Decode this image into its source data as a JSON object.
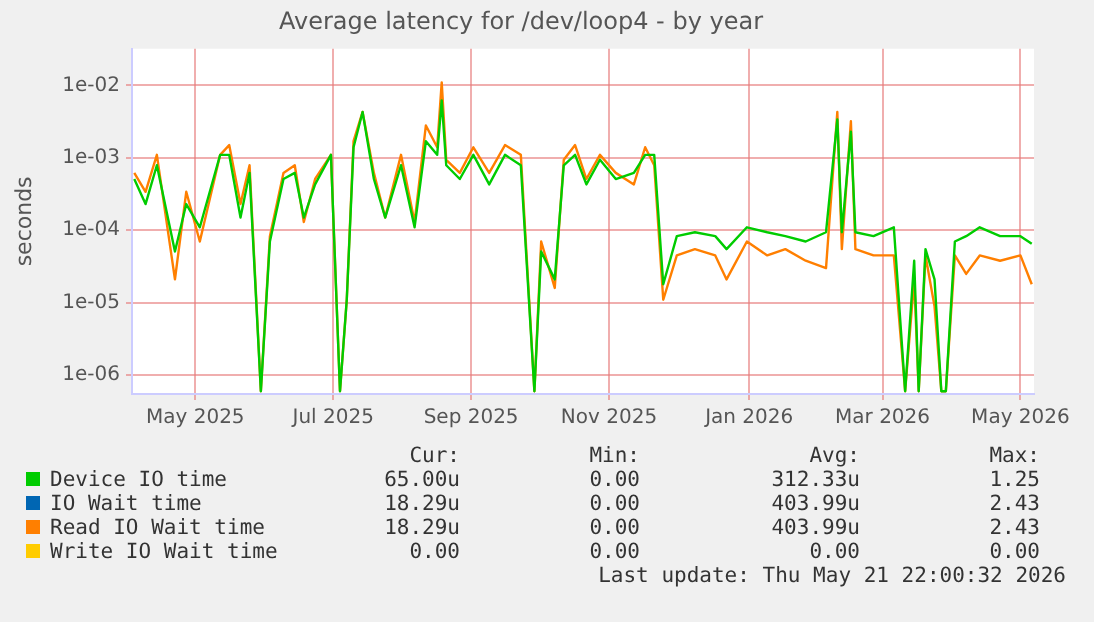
{
  "chart_data": {
    "type": "line",
    "title": "Average latency for /dev/loop4 - by year",
    "ylabel": "seconds",
    "log": "y",
    "grid": true,
    "legend": "bottom",
    "marker": "none",
    "line_style": "solid",
    "x": [
      "2025-04-19",
      "2025-04-24",
      "2025-04-29",
      "2025-05-07",
      "2025-05-12",
      "2025-05-18",
      "2025-05-27",
      "2025-05-31",
      "2025-06-05",
      "2025-06-09",
      "2025-06-14",
      "2025-06-18",
      "2025-06-24",
      "2025-06-29",
      "2025-07-03",
      "2025-07-08",
      "2025-07-15",
      "2025-07-19",
      "2025-07-22",
      "2025-07-25",
      "2025-07-29",
      "2025-08-03",
      "2025-08-08",
      "2025-08-15",
      "2025-08-21",
      "2025-08-26",
      "2025-08-31",
      "2025-09-02",
      "2025-09-04",
      "2025-09-10",
      "2025-09-16",
      "2025-09-23",
      "2025-09-30",
      "2025-10-07",
      "2025-10-13",
      "2025-10-16",
      "2025-10-22",
      "2025-10-26",
      "2025-10-31",
      "2025-11-05",
      "2025-11-11",
      "2025-11-18",
      "2025-11-26",
      "2025-12-01",
      "2025-12-05",
      "2025-12-09",
      "2025-12-15",
      "2025-12-23",
      "2026-01-01",
      "2026-01-06",
      "2026-01-15",
      "2026-01-24",
      "2026-02-01",
      "2026-02-10",
      "2026-02-19",
      "2026-02-24",
      "2026-02-26",
      "2026-03-02",
      "2026-03-04",
      "2026-03-12",
      "2026-03-21",
      "2026-03-26",
      "2026-03-30",
      "2026-04-01",
      "2026-04-04",
      "2026-04-08",
      "2026-04-11",
      "2026-04-13",
      "2026-04-17",
      "2026-04-22",
      "2026-04-28",
      "2026-05-07",
      "2026-05-16",
      "2026-05-21"
    ],
    "series": [
      {
        "name": "Device IO time",
        "color": "#00cc00",
        "values": [
          0.00051,
          0.00023,
          0.00079,
          5.1e-05,
          0.00023,
          0.00011,
          0.0011,
          0.0011,
          0.00015,
          0.00062,
          6e-07,
          7e-05,
          0.00051,
          0.00062,
          0.00015,
          0.00043,
          0.0011,
          6e-07,
          1.1e-05,
          0.0014,
          0.0043,
          0.00051,
          0.00015,
          0.00079,
          0.00011,
          0.0017,
          0.0011,
          0.0062,
          0.00079,
          0.00051,
          0.0011,
          0.00043,
          0.0011,
          0.00079,
          6e-07,
          5.1e-05,
          2.1e-05,
          0.00079,
          0.0011,
          0.00043,
          0.00094,
          0.00051,
          0.00062,
          0.0011,
          0.0011,
          1.8e-05,
          8.3e-05,
          9.4e-05,
          8.3e-05,
          5.5e-05,
          0.00011,
          9.4e-05,
          8.3e-05,
          7e-05,
          9.4e-05,
          0.0034,
          9.4e-05,
          0.0023,
          9.4e-05,
          8.3e-05,
          0.00011,
          6e-07,
          3.8e-05,
          6e-07,
          5.5e-05,
          2.1e-05,
          6e-07,
          6e-07,
          7e-05,
          8.3e-05,
          0.00011,
          8.3e-05,
          8.3e-05,
          6.5e-05
        ]
      },
      {
        "name": "IO Wait time",
        "color": "#0066b3",
        "values": [
          null,
          null,
          null,
          null,
          null,
          null,
          null,
          null,
          null,
          null,
          null,
          null,
          null,
          null,
          null,
          null,
          null,
          null,
          null,
          null,
          null,
          null,
          null,
          null,
          null,
          null,
          null,
          null,
          null,
          null,
          null,
          null,
          null,
          null,
          null,
          null,
          null,
          null,
          null,
          null,
          null,
          null,
          null,
          null,
          null,
          null,
          null,
          null,
          null,
          null,
          null,
          null,
          null,
          null,
          null,
          null,
          null,
          null,
          null,
          null,
          null,
          null,
          null,
          null,
          null,
          null,
          null,
          null,
          null,
          null,
          null,
          null,
          null,
          null
        ]
      },
      {
        "name": "Read IO Wait time",
        "color": "#ff7f00",
        "values": [
          0.00062,
          0.00034,
          0.0011,
          2.1e-05,
          0.00034,
          7e-05,
          0.0011,
          0.0015,
          0.00023,
          0.00079,
          6e-07,
          8.3e-05,
          0.00062,
          0.00079,
          0.00013,
          0.00051,
          0.0011,
          6e-07,
          1.1e-05,
          0.0017,
          0.0043,
          0.00062,
          0.00015,
          0.0011,
          0.00013,
          0.0028,
          0.0014,
          0.011,
          0.00094,
          0.00062,
          0.0014,
          0.00062,
          0.0015,
          0.0011,
          6e-07,
          7e-05,
          1.6e-05,
          0.00094,
          0.0015,
          0.00051,
          0.0011,
          0.00062,
          0.00043,
          0.0014,
          0.00079,
          1.1e-05,
          4.5e-05,
          5.5e-05,
          4.5e-05,
          2.1e-05,
          7e-05,
          4.5e-05,
          5.5e-05,
          3.8e-05,
          3e-05,
          0.0043,
          5.5e-05,
          0.0032,
          5.5e-05,
          4.5e-05,
          4.5e-05,
          6e-07,
          2.1e-05,
          6e-07,
          4.5e-05,
          8.9e-06,
          6e-07,
          6e-07,
          4.5e-05,
          2.5e-05,
          4.5e-05,
          3.8e-05,
          4.5e-05,
          1.8e-05
        ]
      },
      {
        "name": "Write IO Wait time",
        "color": "#ffcc00",
        "values": [
          null,
          null,
          null,
          null,
          null,
          null,
          null,
          null,
          null,
          null,
          null,
          null,
          null,
          null,
          null,
          null,
          null,
          null,
          null,
          null,
          null,
          null,
          null,
          null,
          null,
          null,
          null,
          null,
          null,
          null,
          null,
          null,
          null,
          null,
          null,
          null,
          null,
          null,
          null,
          null,
          null,
          null,
          null,
          null,
          null,
          null,
          null,
          null,
          null,
          null,
          null,
          null,
          null,
          null,
          null,
          null,
          null,
          null,
          null,
          null,
          null,
          null,
          null,
          null,
          null,
          null,
          null,
          null,
          null,
          null,
          null,
          null,
          null,
          null
        ]
      }
    ],
    "xlim": [
      "2025-04-18",
      "2026-05-22"
    ],
    "xticks": [
      {
        "value": "2025-05-16",
        "label": "May 2025"
      },
      {
        "value": "2025-07-16",
        "label": "Jul 2025"
      },
      {
        "value": "2025-09-15",
        "label": "Sep 2025"
      },
      {
        "value": "2025-11-15",
        "label": "Nov 2025"
      },
      {
        "value": "2026-01-16",
        "label": "Jan 2026"
      },
      {
        "value": "2026-03-16",
        "label": "Mar 2026"
      },
      {
        "value": "2026-05-16",
        "label": "May 2026"
      }
    ],
    "ylim": [
      5.5e-07,
      0.032
    ],
    "yticks": [
      {
        "value": 1e-06,
        "label": "1e-06"
      },
      {
        "value": 1e-05,
        "label": "1e-05"
      },
      {
        "value": 0.0001,
        "label": "1e-04"
      },
      {
        "value": 0.001,
        "label": "1e-03"
      },
      {
        "value": 0.01,
        "label": "1e-02"
      }
    ],
    "annotations": [
      "Cur:",
      "Min:",
      "Avg:",
      "Max:",
      "65.00u",
      "0.00",
      "312.33u",
      "1.25",
      "18.29u",
      "0.00",
      "403.99u",
      "2.43",
      "18.29u",
      "0.00",
      "403.99u",
      "2.43",
      "0.00",
      "0.00",
      "0.00",
      "0.00",
      "Last update: Thu May 21 22:00:32 2026"
    ]
  }
}
